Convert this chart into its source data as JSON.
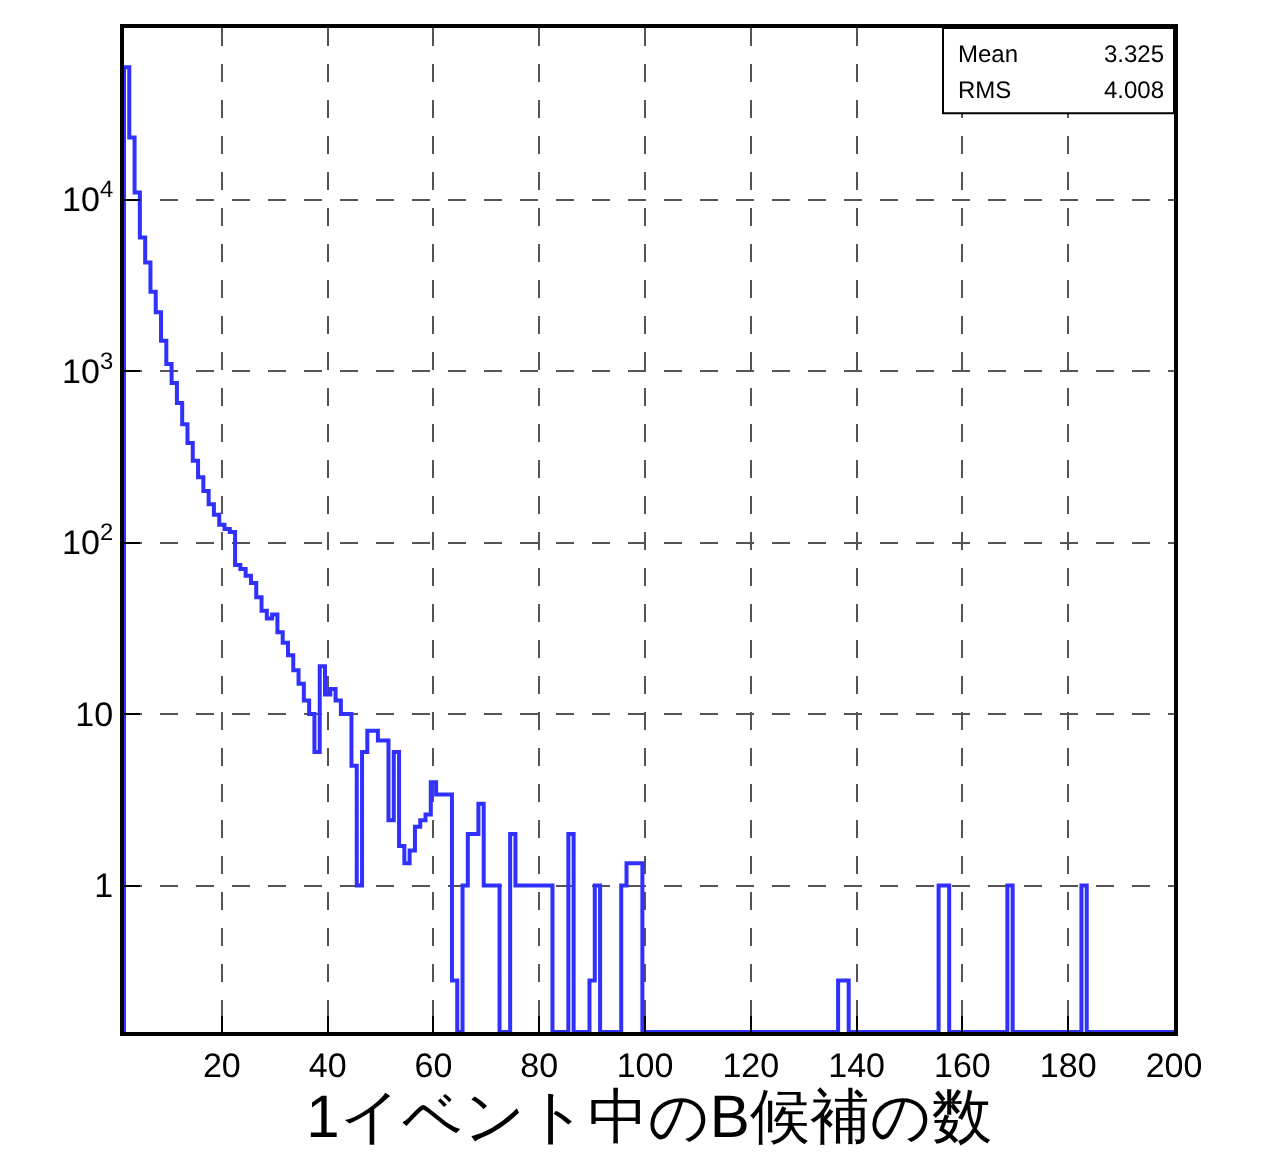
{
  "chart_data": {
    "type": "histogram",
    "xlabel": "1イベント中のB候補の数",
    "bins": [
      1.5,
      2.5,
      3.5,
      4.5,
      5.5,
      6.5,
      7.5,
      8.5,
      9.5,
      10.5,
      11.5,
      12.5,
      13.5,
      14.5,
      15.5,
      16.5,
      17.5,
      18.5,
      19.5,
      20.5,
      21.5,
      22.5,
      23.5,
      24.5,
      25.5,
      26.5,
      27.5,
      28.5,
      29.5,
      30.5,
      31.5,
      32.5,
      33.5,
      34.5,
      35.5,
      36.5,
      37.5,
      38.5,
      39.5,
      40.5,
      41.5,
      42.5,
      43.5,
      44.5,
      45.5,
      46.5,
      47.5,
      48.5,
      49.5,
      50.5,
      51.5,
      52.5,
      53.5,
      54.5,
      55.5,
      56.5,
      57.5,
      58.5,
      59.5,
      60.5,
      61.5,
      62.5,
      63.5,
      64.5,
      65.5,
      66.5,
      67.5,
      68.5,
      69.5,
      70.5,
      71.5,
      72.5,
      73.5,
      74.5,
      75.5,
      76.5,
      77.5,
      78.5,
      79.5,
      80.5,
      81.5,
      82.5,
      83.5,
      84.5,
      85.5,
      86.5,
      87.5,
      88.5,
      89.5,
      90.5,
      91.5,
      92.5,
      93.5,
      94.5,
      95.5,
      96.5,
      97.5,
      98.5,
      99.5,
      100.5,
      136.5,
      138.5,
      155.5,
      157.5,
      168.5,
      169.5,
      182.5,
      183.5,
      200
    ],
    "values": [
      59000,
      23000,
      11000,
      6000,
      4300,
      2900,
      2200,
      1500,
      1100,
      850,
      650,
      490,
      380,
      300,
      240,
      200,
      167,
      145,
      127,
      120,
      115,
      74,
      70,
      64,
      58,
      48,
      40,
      36,
      38,
      30,
      26,
      22,
      18,
      15,
      12,
      10,
      6,
      19,
      13,
      14,
      12,
      10,
      10,
      5,
      1,
      6,
      8,
      8,
      7,
      7,
      2.4,
      6,
      1.7,
      1.35,
      1.6,
      2.2,
      2.4,
      2.6,
      4,
      3.4,
      3.4,
      3.4,
      0.28,
      null,
      1,
      2,
      2,
      3,
      1,
      1,
      1,
      null,
      null,
      2,
      1,
      1,
      1,
      1,
      1,
      1,
      1,
      null,
      null,
      null,
      2,
      null,
      null,
      null,
      0.28,
      1,
      null,
      null,
      null,
      null,
      1,
      1.35,
      1.35,
      1.35,
      null,
      null,
      0.28,
      null,
      1,
      null,
      1,
      null,
      1,
      null
    ],
    "color": "#3030ff",
    "log": true,
    "xlim": [
      1.5,
      200
    ],
    "xticks": [
      20,
      40,
      60,
      80,
      100,
      120,
      140,
      160,
      180,
      200
    ],
    "ylim": [
      0.14,
      100000
    ],
    "yticks": [
      1,
      10,
      {
        "value": 100,
        "label": "10$^{2}$"
      },
      {
        "value": 1000,
        "label": "10$^{3}$"
      },
      {
        "value": 10000,
        "label": "10$^{4}$"
      }
    ],
    "grid": true,
    "annotations": [
      "Mean 3.325",
      "RMS 4.008"
    ]
  }
}
